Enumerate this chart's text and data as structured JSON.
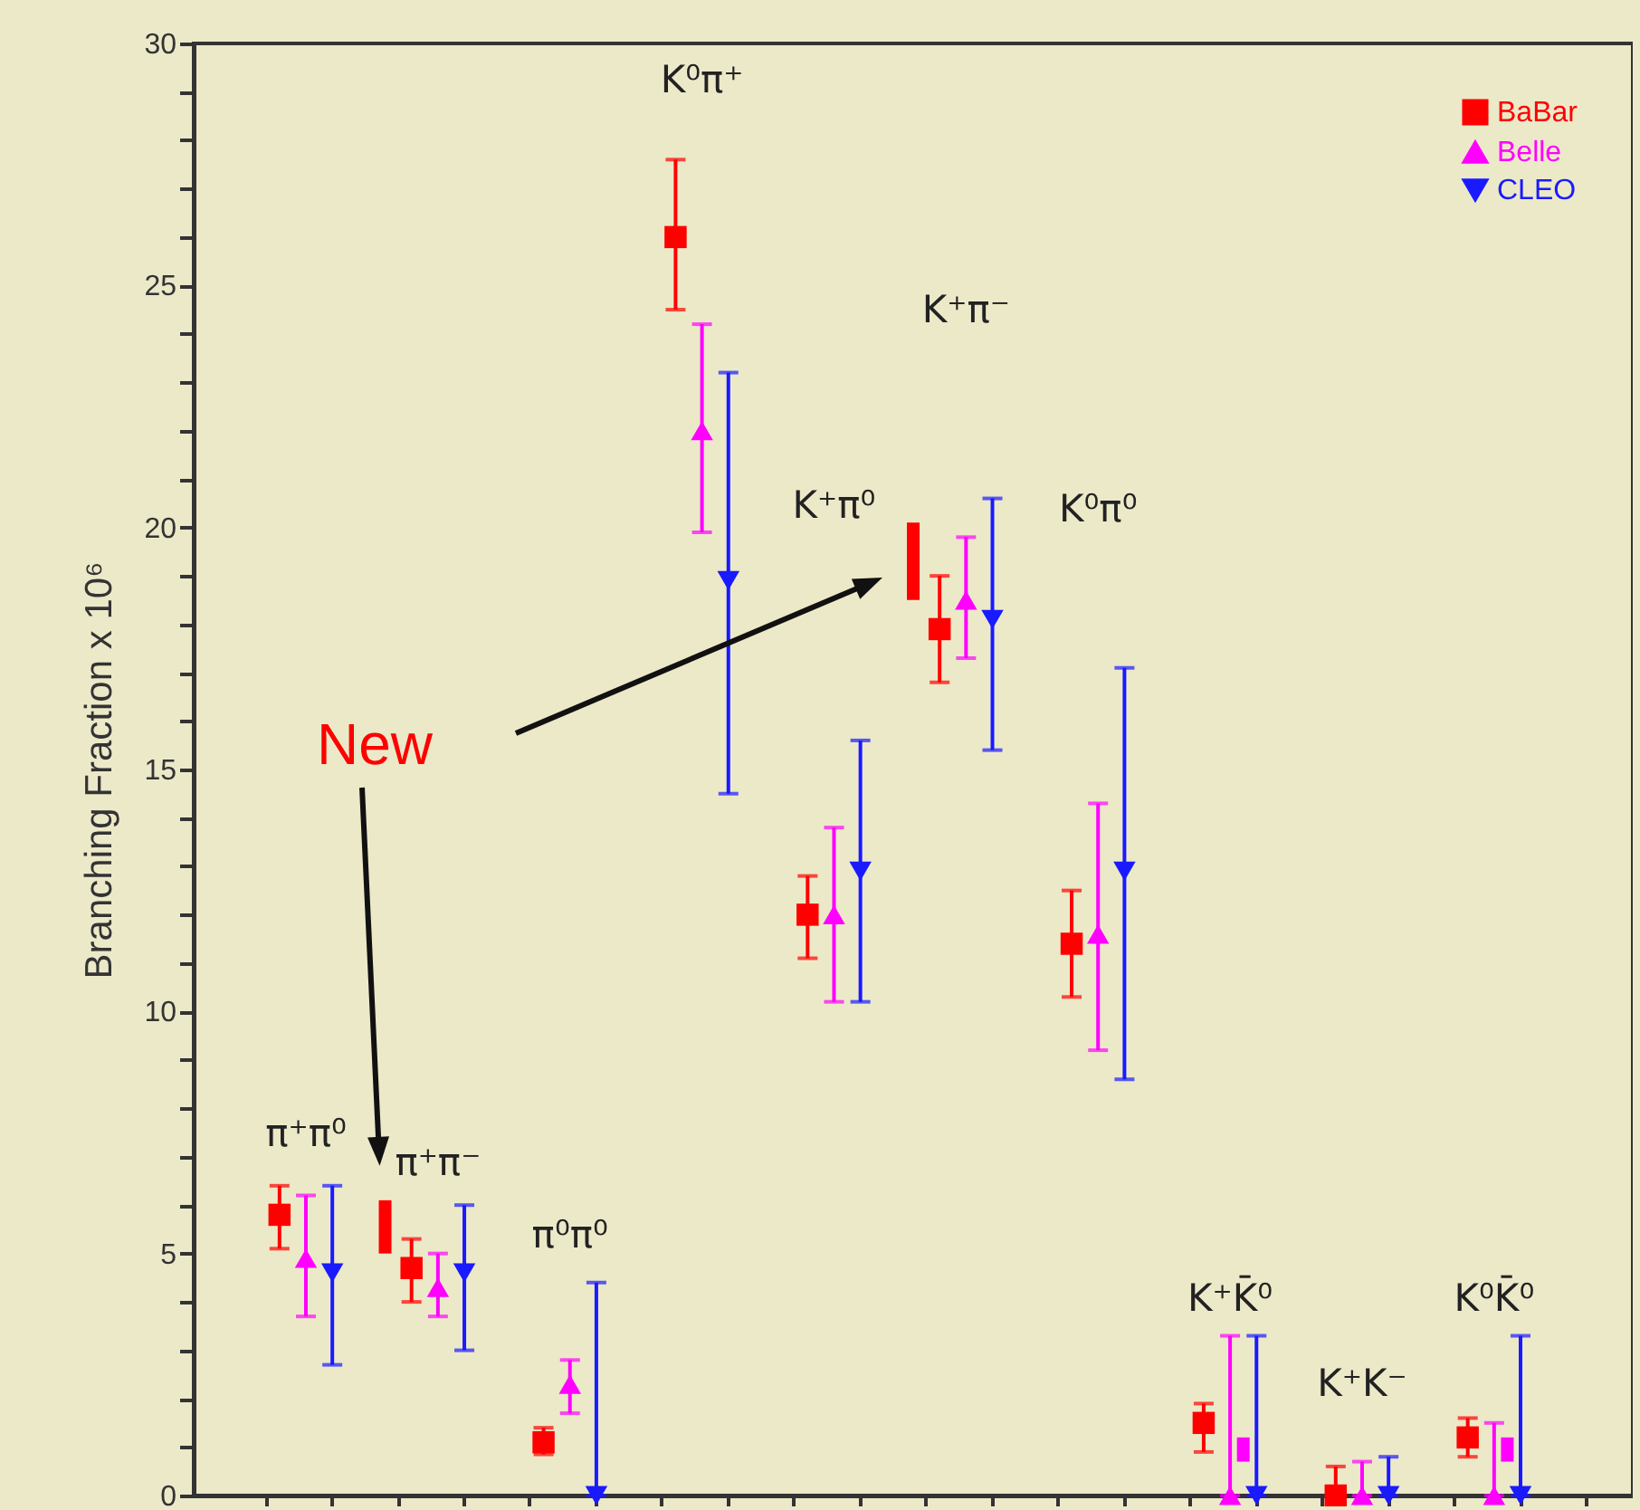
{
  "chart_data": {
    "type": "scatter",
    "ylabel": "Branching Fraction x 10⁶",
    "ylim": [
      0,
      30
    ],
    "yticks": [
      0,
      {
        "value": 1,
        "label": null
      },
      {
        "value": 2,
        "label": null
      },
      {
        "value": 3,
        "label": null
      },
      {
        "value": 4,
        "label": null
      },
      5,
      {
        "value": 6,
        "label": null
      },
      {
        "value": 7,
        "label": null
      },
      {
        "value": 8,
        "label": null
      },
      {
        "value": 9,
        "label": null
      },
      10,
      {
        "value": 11,
        "label": null
      },
      {
        "value": 12,
        "label": null
      },
      {
        "value": 13,
        "label": null
      },
      {
        "value": 14,
        "label": null
      },
      15,
      {
        "value": 16,
        "label": null
      },
      {
        "value": 17,
        "label": null
      },
      {
        "value": 18,
        "label": null
      },
      {
        "value": 19,
        "label": null
      },
      20,
      {
        "value": 21,
        "label": null
      },
      {
        "value": 22,
        "label": null
      },
      {
        "value": 23,
        "label": null
      },
      {
        "value": 24,
        "label": null
      },
      25,
      {
        "value": 26,
        "label": null
      },
      {
        "value": 27,
        "label": null
      },
      {
        "value": 28,
        "label": null
      },
      {
        "value": 29,
        "label": null
      },
      30
    ],
    "tick_labels": "y",
    "legend": "top right",
    "categories": [
      null,
      null,
      null,
      null,
      null,
      null,
      null,
      null,
      null,
      null,
      null,
      null,
      null,
      null,
      null,
      null,
      null,
      null,
      null,
      null,
      null,
      null,
      null,
      null,
      null,
      null,
      null,
      null,
      null,
      null,
      null,
      null,
      null,
      null,
      null,
      null,
      null,
      null,
      null,
      null,
      null,
      null,
      null,
      null,
      null,
      null,
      null,
      null,
      null,
      null,
      null,
      null,
      null,
      null,
      null,
      null,
      null,
      null,
      null,
      null,
      null,
      null,
      null,
      null,
      null,
      null,
      null,
      null,
      null,
      null,
      null,
      null,
      null,
      null,
      null,
      null,
      null,
      null,
      null,
      null,
      null,
      null,
      null,
      null,
      null,
      null,
      null,
      null,
      null,
      null,
      null,
      null,
      null,
      null,
      null,
      null,
      null,
      null,
      null,
      null,
      null,
      null,
      null,
      null,
      null,
      null,
      null,
      null,
      null
    ],
    "series": [
      {
        "name": "BaBar",
        "color": "#ff0000",
        "marker": "square",
        "values": [
          null,
          null,
          null,
          null,
          null,
          null,
          5.8,
          null,
          null,
          null,
          null,
          null,
          null,
          null,
          null,
          null,
          4.7,
          null,
          null,
          null,
          null,
          null,
          null,
          null,
          null,
          null,
          1.1,
          null,
          null,
          null,
          null,
          null,
          null,
          null,
          null,
          null,
          26,
          null,
          null,
          null,
          null,
          null,
          null,
          null,
          null,
          null,
          12,
          null,
          null,
          null,
          null,
          null,
          null,
          null,
          null,
          null,
          17.9,
          null,
          null,
          null,
          null,
          null,
          null,
          null,
          null,
          null,
          11.4,
          null,
          null,
          null,
          null,
          null,
          null,
          null,
          null,
          null,
          1.5,
          null,
          null,
          null,
          null,
          null,
          null,
          null,
          null,
          null,
          0,
          null,
          null,
          null,
          null,
          null,
          null,
          null,
          null,
          null,
          1.2,
          null,
          null,
          null,
          null,
          null,
          null,
          null,
          null,
          null,
          null,
          null,
          null
        ],
        "errors": [
          null,
          null,
          null,
          null,
          null,
          null,
          [
            5.1,
            6.4
          ],
          null,
          null,
          null,
          null,
          null,
          null,
          null,
          null,
          null,
          [
            4.0,
            5.3
          ],
          null,
          null,
          null,
          null,
          null,
          null,
          null,
          null,
          null,
          [
            0.85,
            1.4
          ],
          null,
          null,
          null,
          null,
          null,
          null,
          null,
          null,
          null,
          [
            24.5,
            27.6
          ],
          null,
          null,
          null,
          null,
          null,
          null,
          null,
          null,
          null,
          [
            11.1,
            12.8
          ],
          null,
          null,
          null,
          null,
          null,
          null,
          null,
          null,
          null,
          [
            16.8,
            19.0
          ],
          null,
          null,
          null,
          null,
          null,
          null,
          null,
          null,
          null,
          [
            10.3,
            12.5
          ],
          null,
          null,
          null,
          null,
          null,
          null,
          null,
          null,
          null,
          [
            0.9,
            1.9
          ],
          null,
          null,
          null,
          null,
          null,
          null,
          null,
          null,
          null,
          [
            0,
            0.6
          ],
          null,
          null,
          null,
          null,
          null,
          null,
          null,
          null,
          null,
          [
            0.8,
            1.6
          ],
          null,
          null,
          null,
          null,
          null,
          null,
          null,
          null,
          null,
          null,
          null,
          null
        ]
      },
      {
        "name": "Belle",
        "color": "#ff00ff",
        "marker": "triangle",
        "values": [
          null,
          null,
          null,
          null,
          null,
          null,
          null,
          null,
          4.9,
          null,
          null,
          null,
          null,
          null,
          null,
          null,
          null,
          null,
          4.3,
          null,
          null,
          null,
          null,
          null,
          null,
          null,
          null,
          null,
          2.3,
          null,
          null,
          null,
          null,
          null,
          null,
          null,
          null,
          null,
          22,
          null,
          null,
          null,
          null,
          null,
          null,
          null,
          null,
          null,
          12,
          null,
          null,
          null,
          null,
          null,
          null,
          null,
          null,
          null,
          18.5,
          null,
          null,
          null,
          null,
          null,
          null,
          null,
          null,
          null,
          11.6,
          null,
          null,
          null,
          null,
          null,
          null,
          null,
          null,
          null,
          0,
          null,
          null,
          null,
          null,
          null,
          null,
          null,
          null,
          null,
          0,
          null,
          null,
          null,
          null,
          null,
          null,
          null,
          null,
          null,
          0,
          null,
          null,
          null,
          null,
          null,
          null,
          null,
          null,
          null,
          null
        ],
        "errors": [
          null,
          null,
          null,
          null,
          null,
          null,
          null,
          null,
          [
            3.7,
            6.2
          ],
          null,
          null,
          null,
          null,
          null,
          null,
          null,
          null,
          null,
          [
            3.7,
            5.0
          ],
          null,
          null,
          null,
          null,
          null,
          null,
          null,
          null,
          null,
          [
            1.7,
            2.8
          ],
          null,
          null,
          null,
          null,
          null,
          null,
          null,
          null,
          null,
          [
            19.9,
            24.2
          ],
          null,
          null,
          null,
          null,
          null,
          null,
          null,
          null,
          null,
          [
            10.2,
            13.8
          ],
          null,
          null,
          null,
          null,
          null,
          null,
          null,
          null,
          null,
          [
            17.3,
            19.8
          ],
          null,
          null,
          null,
          null,
          null,
          null,
          null,
          null,
          null,
          [
            9.2,
            14.3
          ],
          null,
          null,
          null,
          null,
          null,
          null,
          null,
          null,
          null,
          [
            0,
            3.3
          ],
          null,
          null,
          null,
          null,
          null,
          null,
          null,
          null,
          null,
          [
            0,
            0.7
          ],
          null,
          null,
          null,
          null,
          null,
          null,
          null,
          null,
          null,
          [
            0,
            1.5
          ],
          null,
          null,
          null,
          null,
          null,
          null,
          null,
          null,
          null,
          null
        ]
      },
      {
        "name": "CLEO",
        "color": "#1a1aff",
        "marker": "triangle-down",
        "values": [
          null,
          null,
          null,
          null,
          null,
          null,
          null,
          null,
          null,
          null,
          4.6,
          null,
          null,
          null,
          null,
          null,
          null,
          null,
          null,
          null,
          4.6,
          null,
          null,
          null,
          null,
          null,
          null,
          null,
          null,
          null,
          0,
          null,
          null,
          null,
          null,
          null,
          null,
          null,
          null,
          null,
          18.9,
          null,
          null,
          null,
          null,
          null,
          null,
          null,
          null,
          null,
          12.9,
          null,
          null,
          null,
          null,
          null,
          null,
          null,
          null,
          null,
          18.1,
          null,
          null,
          null,
          null,
          null,
          null,
          null,
          null,
          null,
          12.9,
          null,
          null,
          null,
          null,
          null,
          null,
          null,
          null,
          null,
          0,
          null,
          null,
          null,
          null,
          null,
          null,
          null,
          null,
          null,
          0,
          null,
          null,
          null,
          null,
          null,
          null,
          null,
          null,
          null,
          0,
          null,
          null,
          null,
          null,
          null,
          null,
          null,
          null
        ],
        "errors": [
          null,
          null,
          null,
          null,
          null,
          null,
          null,
          null,
          null,
          null,
          [
            2.7,
            6.4
          ],
          null,
          null,
          null,
          null,
          null,
          null,
          null,
          null,
          null,
          [
            3.0,
            6.0
          ],
          null,
          null,
          null,
          null,
          null,
          null,
          null,
          null,
          null,
          [
            0,
            4.4
          ],
          null,
          null,
          null,
          null,
          null,
          null,
          null,
          null,
          null,
          [
            14.5,
            23.2
          ],
          null,
          null,
          null,
          null,
          null,
          null,
          null,
          null,
          null,
          [
            10.2,
            15.6
          ],
          null,
          null,
          null,
          null,
          null,
          null,
          null,
          null,
          null,
          [
            15.4,
            20.6
          ],
          null,
          null,
          null,
          null,
          null,
          null,
          null,
          null,
          null,
          [
            8.6,
            17.1
          ],
          null,
          null,
          null,
          null,
          null,
          null,
          null,
          null,
          null,
          [
            0,
            3.3
          ],
          null,
          null,
          null,
          null,
          null,
          null,
          null,
          null,
          null,
          [
            0,
            0.8
          ],
          null,
          null,
          null,
          null,
          null,
          null,
          null,
          null,
          null,
          [
            0,
            3.3
          ],
          null,
          null,
          null,
          null,
          null,
          null,
          null,
          null
        ]
      },
      {
        "type": "bar",
        "color": "#ff0000",
        "colors": [
          null,
          null,
          null,
          null,
          null,
          null,
          null,
          null,
          null,
          null,
          null,
          null,
          null,
          null,
          "#ff0000",
          null,
          null,
          null,
          null,
          null,
          null,
          null,
          null,
          null,
          null,
          null,
          null,
          null,
          null,
          null,
          null,
          null,
          null,
          null,
          null,
          null,
          null,
          null,
          null,
          null,
          null,
          null,
          null,
          null,
          null,
          null,
          null,
          null,
          null,
          null,
          null,
          null,
          null,
          null,
          "#ff0000",
          null,
          null,
          null,
          null,
          null,
          null,
          null,
          null,
          null,
          null,
          null,
          null,
          null,
          null,
          null,
          null,
          null,
          null,
          null,
          null,
          null,
          null,
          null,
          null,
          "#ff00ff",
          null,
          null,
          null,
          null,
          null,
          null,
          null,
          null,
          null,
          null,
          null,
          null,
          null,
          null,
          null,
          null,
          null,
          null,
          null,
          "#ff00ff",
          null,
          null,
          null,
          null,
          null,
          null,
          null,
          null,
          null
        ],
        "base": [
          null,
          null,
          null,
          null,
          null,
          null,
          null,
          null,
          null,
          null,
          null,
          null,
          null,
          null,
          5.0,
          null,
          null,
          null,
          null,
          null,
          null,
          null,
          null,
          null,
          null,
          null,
          null,
          null,
          null,
          null,
          null,
          null,
          null,
          null,
          null,
          null,
          null,
          null,
          null,
          null,
          null,
          null,
          null,
          null,
          null,
          null,
          null,
          null,
          null,
          null,
          null,
          null,
          null,
          null,
          18.5,
          null,
          null,
          null,
          null,
          null,
          null,
          null,
          null,
          null,
          null,
          null,
          null,
          null,
          null,
          null,
          null,
          null,
          null,
          null,
          null,
          null,
          null,
          null,
          null,
          0.7,
          null,
          null,
          null,
          null,
          null,
          null,
          null,
          null,
          null,
          null,
          null,
          null,
          null,
          null,
          null,
          null,
          null,
          null,
          null,
          0.7,
          null,
          null,
          null,
          null,
          null,
          null,
          null,
          null,
          null
        ],
        "values": [
          null,
          null,
          null,
          null,
          null,
          null,
          null,
          null,
          null,
          null,
          null,
          null,
          null,
          null,
          1.1,
          null,
          null,
          null,
          null,
          null,
          null,
          null,
          null,
          null,
          null,
          null,
          null,
          null,
          null,
          null,
          null,
          null,
          null,
          null,
          null,
          null,
          null,
          null,
          null,
          null,
          null,
          null,
          null,
          null,
          null,
          null,
          null,
          null,
          null,
          null,
          null,
          null,
          null,
          null,
          1.6,
          null,
          null,
          null,
          null,
          null,
          null,
          null,
          null,
          null,
          null,
          null,
          null,
          null,
          null,
          null,
          null,
          null,
          null,
          null,
          null,
          null,
          null,
          null,
          null,
          0.5,
          null,
          null,
          null,
          null,
          null,
          null,
          null,
          null,
          null,
          null,
          null,
          null,
          null,
          null,
          null,
          null,
          null,
          null,
          null,
          0.5,
          null,
          null,
          null,
          null,
          null,
          null,
          null,
          null,
          null
        ]
      }
    ],
    "annotations": [
      "π⁺π⁰",
      "π⁺π⁻",
      "π⁰π⁰",
      "K⁰π⁺",
      "K⁺π⁰",
      "K⁺π⁻",
      "K⁰π⁰",
      "K⁺K̄⁰",
      "K⁺K⁻",
      "K⁰K̄⁰",
      "New"
    ]
  }
}
